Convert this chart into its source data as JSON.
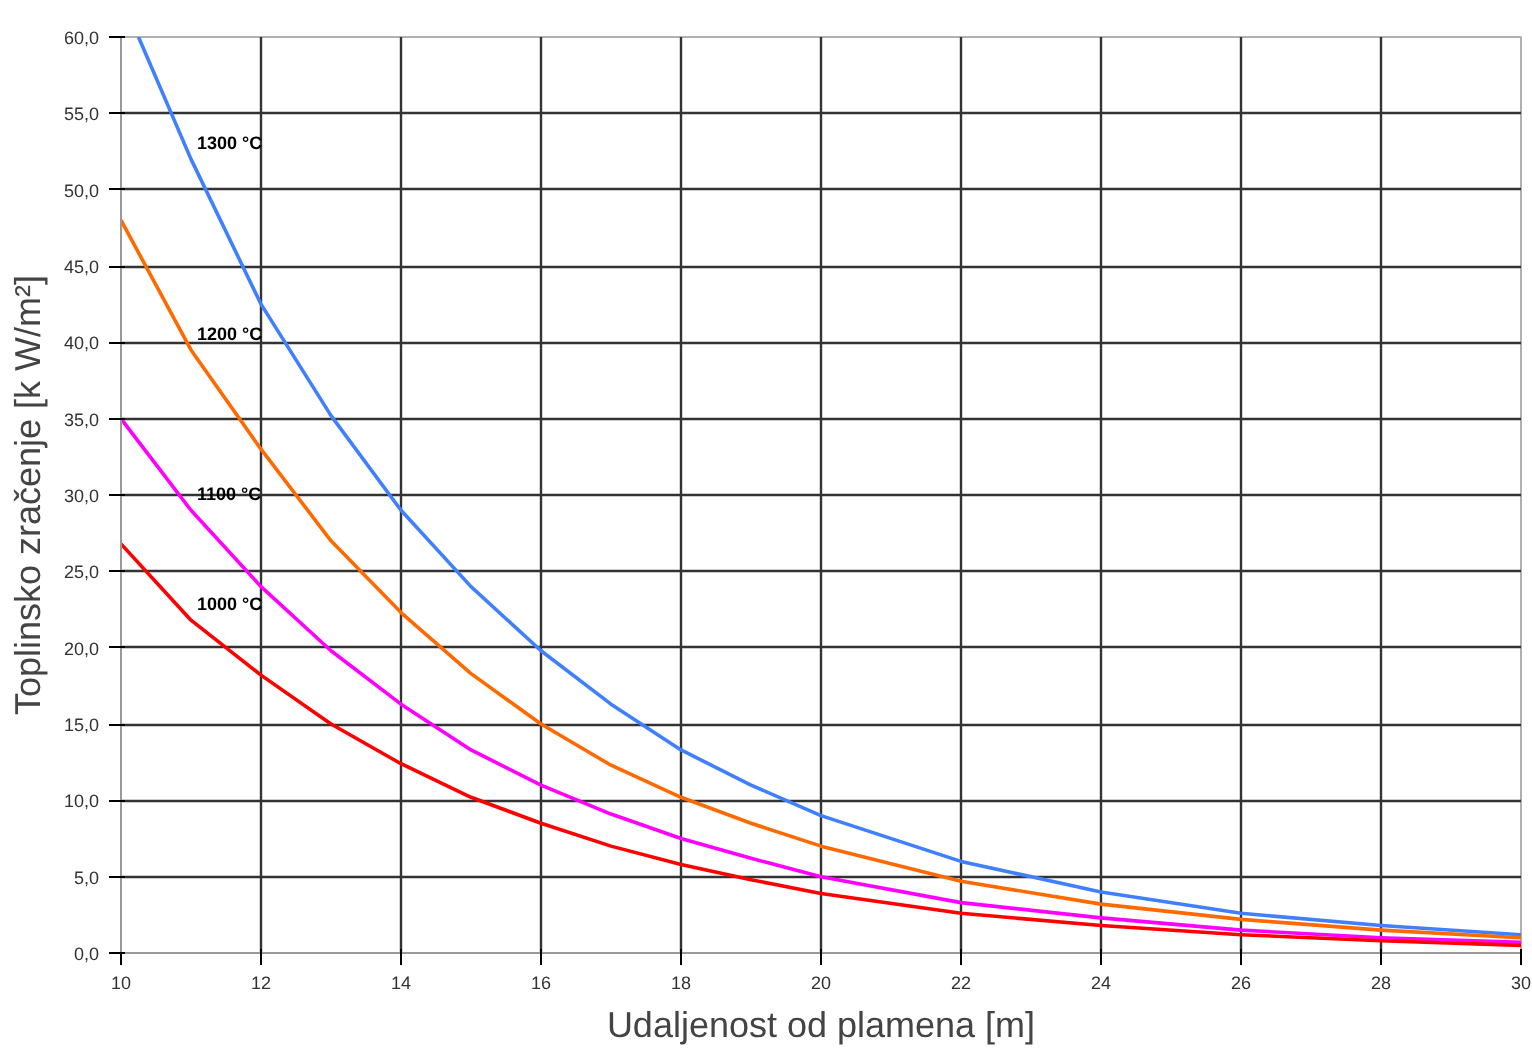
{
  "chart_data": {
    "type": "line",
    "xlabel": "Udaljenost od plamena [m]",
    "ylabel": "Toplinsko zračenje [k W/m²]",
    "xlim": [
      10,
      30
    ],
    "ylim": [
      0,
      60
    ],
    "xticks": [
      10,
      12,
      14,
      16,
      18,
      20,
      22,
      24,
      26,
      28,
      30
    ],
    "yticks": [
      {
        "value": 0,
        "label": "0,0"
      },
      {
        "value": 5,
        "label": "5,0"
      },
      {
        "value": 10,
        "label": "10,0"
      },
      {
        "value": 15,
        "label": "15,0"
      },
      {
        "value": 20,
        "label": "20,0"
      },
      {
        "value": 25,
        "label": "25,0"
      },
      {
        "value": 30,
        "label": "30,0"
      },
      {
        "value": 35,
        "label": "35,0"
      },
      {
        "value": 40,
        "label": "40,0"
      },
      {
        "value": 45,
        "label": "45,0"
      },
      {
        "value": 50,
        "label": "50,0"
      },
      {
        "value": 55,
        "label": "55,0"
      },
      {
        "value": 60,
        "label": "60,0"
      }
    ],
    "grid": true,
    "legend": false,
    "marker": "none",
    "line_style": "solid",
    "series": [
      {
        "name": "1300 °C",
        "color": "#4080ff",
        "x": [
          10.25,
          11,
          12,
          13,
          14,
          15,
          16,
          17,
          18,
          19,
          20,
          22,
          24,
          26,
          28,
          30
        ],
        "values": [
          60,
          52,
          42.5,
          35.2,
          29,
          24,
          19.8,
          16.3,
          13.3,
          11,
          9.0,
          6.0,
          4.0,
          2.6,
          1.8,
          1.2
        ]
      },
      {
        "name": "1200 °C",
        "color": "#ff6a00",
        "x": [
          10,
          11,
          12,
          13,
          14,
          15,
          16,
          17,
          18,
          19,
          20,
          22,
          24,
          26,
          28,
          30
        ],
        "values": [
          48,
          39.5,
          33,
          27,
          22.3,
          18.3,
          15.0,
          12.3,
          10.2,
          8.5,
          7.0,
          4.7,
          3.2,
          2.2,
          1.5,
          1.0
        ]
      },
      {
        "name": "1100 °C",
        "color": "#ff00ff",
        "x": [
          10,
          11,
          12,
          13,
          14,
          15,
          16,
          17,
          18,
          19,
          20,
          22,
          24,
          26,
          28,
          30
        ],
        "values": [
          35,
          29,
          24,
          19.8,
          16.3,
          13.3,
          11.0,
          9.1,
          7.5,
          6.2,
          5.0,
          3.3,
          2.3,
          1.5,
          1.0,
          0.7
        ]
      },
      {
        "name": "1000 °C",
        "color": "#ff0000",
        "x": [
          10,
          11,
          12,
          13,
          14,
          15,
          16,
          17,
          18,
          19,
          20,
          22,
          24,
          26,
          28,
          30
        ],
        "values": [
          26.8,
          21.8,
          18.2,
          15,
          12.4,
          10.2,
          8.5,
          7,
          5.8,
          4.8,
          3.9,
          2.6,
          1.8,
          1.2,
          0.8,
          0.5
        ]
      }
    ]
  }
}
